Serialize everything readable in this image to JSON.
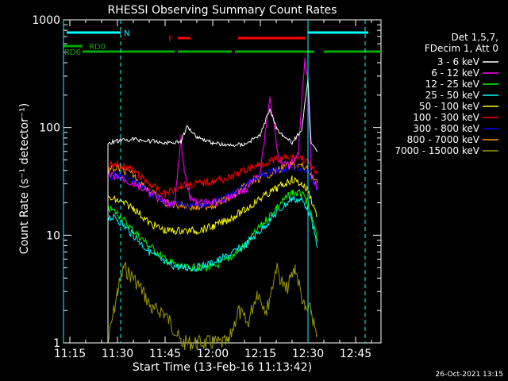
{
  "chart_data": {
    "type": "line",
    "title": "RHESSI Observing Summary Count Rates",
    "xlabel": "Start Time (13-Feb-16 11:13:42)",
    "ylabel": "Count Rate (s⁻¹ detector⁻¹)",
    "yscale": "log",
    "ylim": [
      1,
      1000
    ],
    "xlim": [
      "11:13",
      "12:53"
    ],
    "x_ticks": [
      "11:15",
      "11:30",
      "11:45",
      "12:00",
      "12:15",
      "12:30",
      "12:45"
    ],
    "y_ticks": [
      "1",
      "10",
      "100",
      "1000"
    ],
    "legend_header": [
      "Det 1,5,7,",
      "FDecim 1, Att 0"
    ],
    "series": [
      {
        "name": "3 - 6 keV",
        "color": "#ffffff",
        "x": [
          "11:27",
          "11:30",
          "11:35",
          "11:40",
          "11:45",
          "11:50",
          "11:52",
          "11:55",
          "12:00",
          "12:05",
          "12:10",
          "12:15",
          "12:18",
          "12:20",
          "12:22",
          "12:25",
          "12:28",
          "12:30",
          "12:31",
          "12:33"
        ],
        "y": [
          72,
          75,
          78,
          75,
          72,
          74,
          103,
          82,
          72,
          68,
          70,
          85,
          150,
          100,
          85,
          72,
          95,
          280,
          70,
          62
        ]
      },
      {
        "name": "6 - 12 keV",
        "color": "#ff00ff",
        "x": [
          "11:27",
          "11:30",
          "11:35",
          "11:40",
          "11:45",
          "11:48",
          "11:50",
          "11:51",
          "11:53",
          "11:55",
          "12:00",
          "12:05",
          "12:10",
          "12:15",
          "12:18",
          "12:21",
          "12:24",
          "12:27",
          "12:29",
          "12:30",
          "12:31",
          "12:33"
        ],
        "y": [
          36,
          35,
          30,
          25,
          20,
          19,
          80,
          40,
          22,
          20,
          20,
          22,
          26,
          40,
          190,
          48,
          44,
          60,
          420,
          250,
          40,
          26
        ]
      },
      {
        "name": "12 - 25 keV",
        "color": "#00ff00",
        "x": [
          "11:27",
          "11:30",
          "11:35",
          "11:40",
          "11:45",
          "11:50",
          "11:55",
          "12:00",
          "12:05",
          "12:10",
          "12:15",
          "12:20",
          "12:25",
          "12:28",
          "12:30",
          "12:33"
        ],
        "y": [
          18,
          16,
          11,
          8,
          6,
          5,
          5,
          5,
          6,
          8,
          12,
          18,
          25,
          24,
          20,
          9
        ]
      },
      {
        "name": "25 - 50 keV",
        "color": "#00ffff",
        "x": [
          "11:27",
          "11:30",
          "11:35",
          "11:40",
          "11:45",
          "11:50",
          "11:55",
          "12:00",
          "12:05",
          "12:10",
          "12:15",
          "12:20",
          "12:25",
          "12:28",
          "12:30",
          "12:33"
        ],
        "y": [
          15,
          14,
          10,
          7,
          5.5,
          5,
          5,
          5.5,
          6.5,
          8,
          11,
          16,
          22,
          21,
          18,
          8
        ]
      },
      {
        "name": "50 - 100 keV",
        "color": "#ffff00",
        "x": [
          "11:27",
          "11:30",
          "11:35",
          "11:40",
          "11:45",
          "11:50",
          "11:55",
          "12:00",
          "12:05",
          "12:10",
          "12:15",
          "12:20",
          "12:25",
          "12:28",
          "12:30",
          "12:33"
        ],
        "y": [
          22,
          21,
          18,
          13,
          11,
          11,
          11,
          12,
          14,
          17,
          22,
          27,
          33,
          30,
          26,
          15
        ]
      },
      {
        "name": "100 - 300 keV",
        "color": "#ff0000",
        "x": [
          "11:27",
          "11:30",
          "11:35",
          "11:40",
          "11:45",
          "11:50",
          "11:55",
          "12:00",
          "12:05",
          "12:10",
          "12:15",
          "12:20",
          "12:25",
          "12:28",
          "12:30",
          "12:33"
        ],
        "y": [
          44,
          46,
          40,
          30,
          24,
          29,
          30,
          32,
          34,
          40,
          46,
          50,
          53,
          52,
          48,
          35
        ]
      },
      {
        "name": "300 - 800 keV",
        "color": "#0000ff",
        "x": [
          "11:27",
          "11:30",
          "11:35",
          "11:40",
          "11:45",
          "11:50",
          "11:55",
          "12:00",
          "12:05",
          "12:10",
          "12:15",
          "12:20",
          "12:25",
          "12:28",
          "12:30",
          "12:33"
        ],
        "y": [
          34,
          36,
          32,
          25,
          20,
          19,
          19,
          20,
          23,
          29,
          35,
          40,
          43,
          42,
          38,
          26
        ]
      },
      {
        "name": "800 - 7000 keV",
        "color": "#ff9900",
        "x": [
          "11:27",
          "11:30",
          "11:35",
          "11:40",
          "11:45",
          "11:50",
          "11:55",
          "12:00",
          "12:05",
          "12:10",
          "12:15",
          "12:20",
          "12:25",
          "12:28",
          "12:30",
          "12:33"
        ],
        "y": [
          40,
          42,
          36,
          26,
          20,
          19,
          18,
          19,
          22,
          28,
          34,
          40,
          45,
          44,
          40,
          30
        ]
      },
      {
        "name": "7000 - 15000 keV",
        "color": "#999900",
        "x": [
          "11:27",
          "11:30",
          "11:32",
          "11:35",
          "11:38",
          "11:41",
          "11:44",
          "11:47",
          "11:50",
          "12:05",
          "12:08",
          "12:11",
          "12:14",
          "12:17",
          "12:20",
          "12:23",
          "12:26",
          "12:29",
          "12:31",
          "12:33"
        ],
        "y": [
          1,
          3,
          5,
          4,
          3,
          2,
          2,
          1.5,
          1,
          1,
          2,
          1.5,
          3,
          2,
          5,
          3,
          5,
          2,
          2,
          1
        ]
      }
    ],
    "state_bars": [
      {
        "label": "N",
        "color": "#00ffff",
        "segments": [
          [
            "11:14",
            "11:31"
          ],
          [
            "12:30",
            "12:49"
          ]
        ]
      },
      {
        "label": "F",
        "color": "#ff0000",
        "segments": [
          [
            "11:49",
            "11:53"
          ],
          [
            "12:08",
            "12:29"
          ]
        ]
      },
      {
        "label": "RD0",
        "color": "#00aa00",
        "segments": [
          [
            "11:13",
            "11:19"
          ]
        ]
      },
      {
        "label": "RD6",
        "color": "#00aa00",
        "segments": [
          [
            "11:19",
            "11:48"
          ],
          [
            "11:49",
            "12:06"
          ],
          [
            "12:07",
            "12:32"
          ],
          [
            "12:35",
            "12:53"
          ]
        ]
      }
    ],
    "vlines": {
      "solid": [
        "11:13",
        "12:30"
      ],
      "dashed": [
        "11:31",
        "12:48"
      ]
    },
    "timestamp": "26-Oct-2021 13:15"
  }
}
